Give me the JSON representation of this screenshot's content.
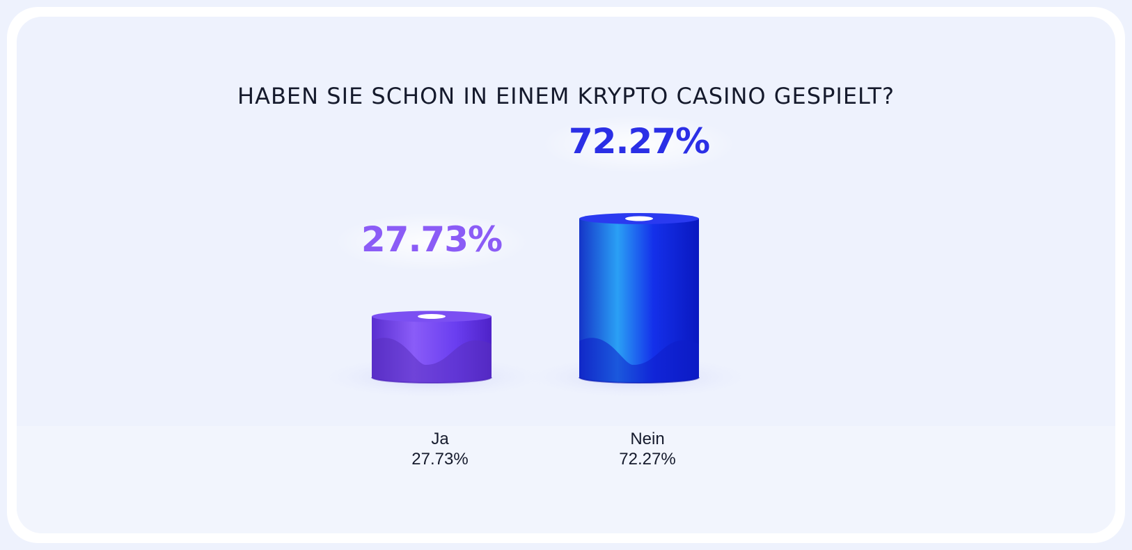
{
  "title": "HABEN SIE SCHON IN EINEM KRYPTO CASINO GESPIELT?",
  "chart_data": {
    "type": "bar",
    "title": "HABEN SIE SCHON IN EINEM KRYPTO CASINO GESPIELT?",
    "categories": [
      "Ja",
      "Nein"
    ],
    "values": [
      27.73,
      72.27
    ],
    "value_labels": [
      "27.73%",
      "72.27%"
    ],
    "category_value_labels": [
      "27.73%",
      "72.27%"
    ],
    "colors": [
      "#7a48f0",
      "#1f2ee8"
    ],
    "label_colors": [
      "#8b5cf6",
      "#2b2fe6"
    ],
    "ylim": [
      0,
      100
    ],
    "grid": false,
    "legend": "none"
  }
}
